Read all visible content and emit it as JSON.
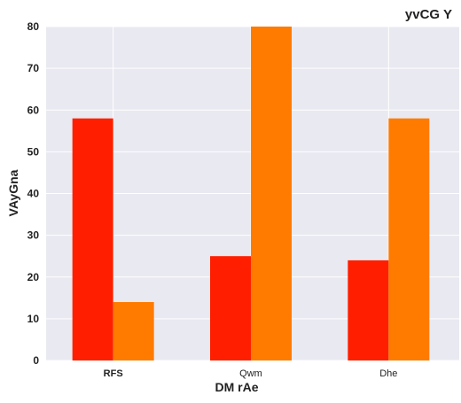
{
  "chart_data": {
    "type": "bar",
    "title": "yvCG Y",
    "xlabel": "DM rAe",
    "ylabel": "VAyGna",
    "categories": [
      "RFS",
      "Qwm",
      "Dhe"
    ],
    "category_bold": [
      true,
      false,
      false
    ],
    "series": [
      {
        "values": [
          58,
          25,
          24
        ],
        "color": "#ff1f00"
      },
      {
        "values": [
          14,
          80,
          58
        ],
        "color": "#ff7b00"
      }
    ],
    "ylim": [
      0,
      80
    ],
    "yticks": [
      0,
      10,
      20,
      30,
      40,
      50,
      60,
      70,
      80
    ],
    "grid": true,
    "background": "#e9e9f1"
  }
}
